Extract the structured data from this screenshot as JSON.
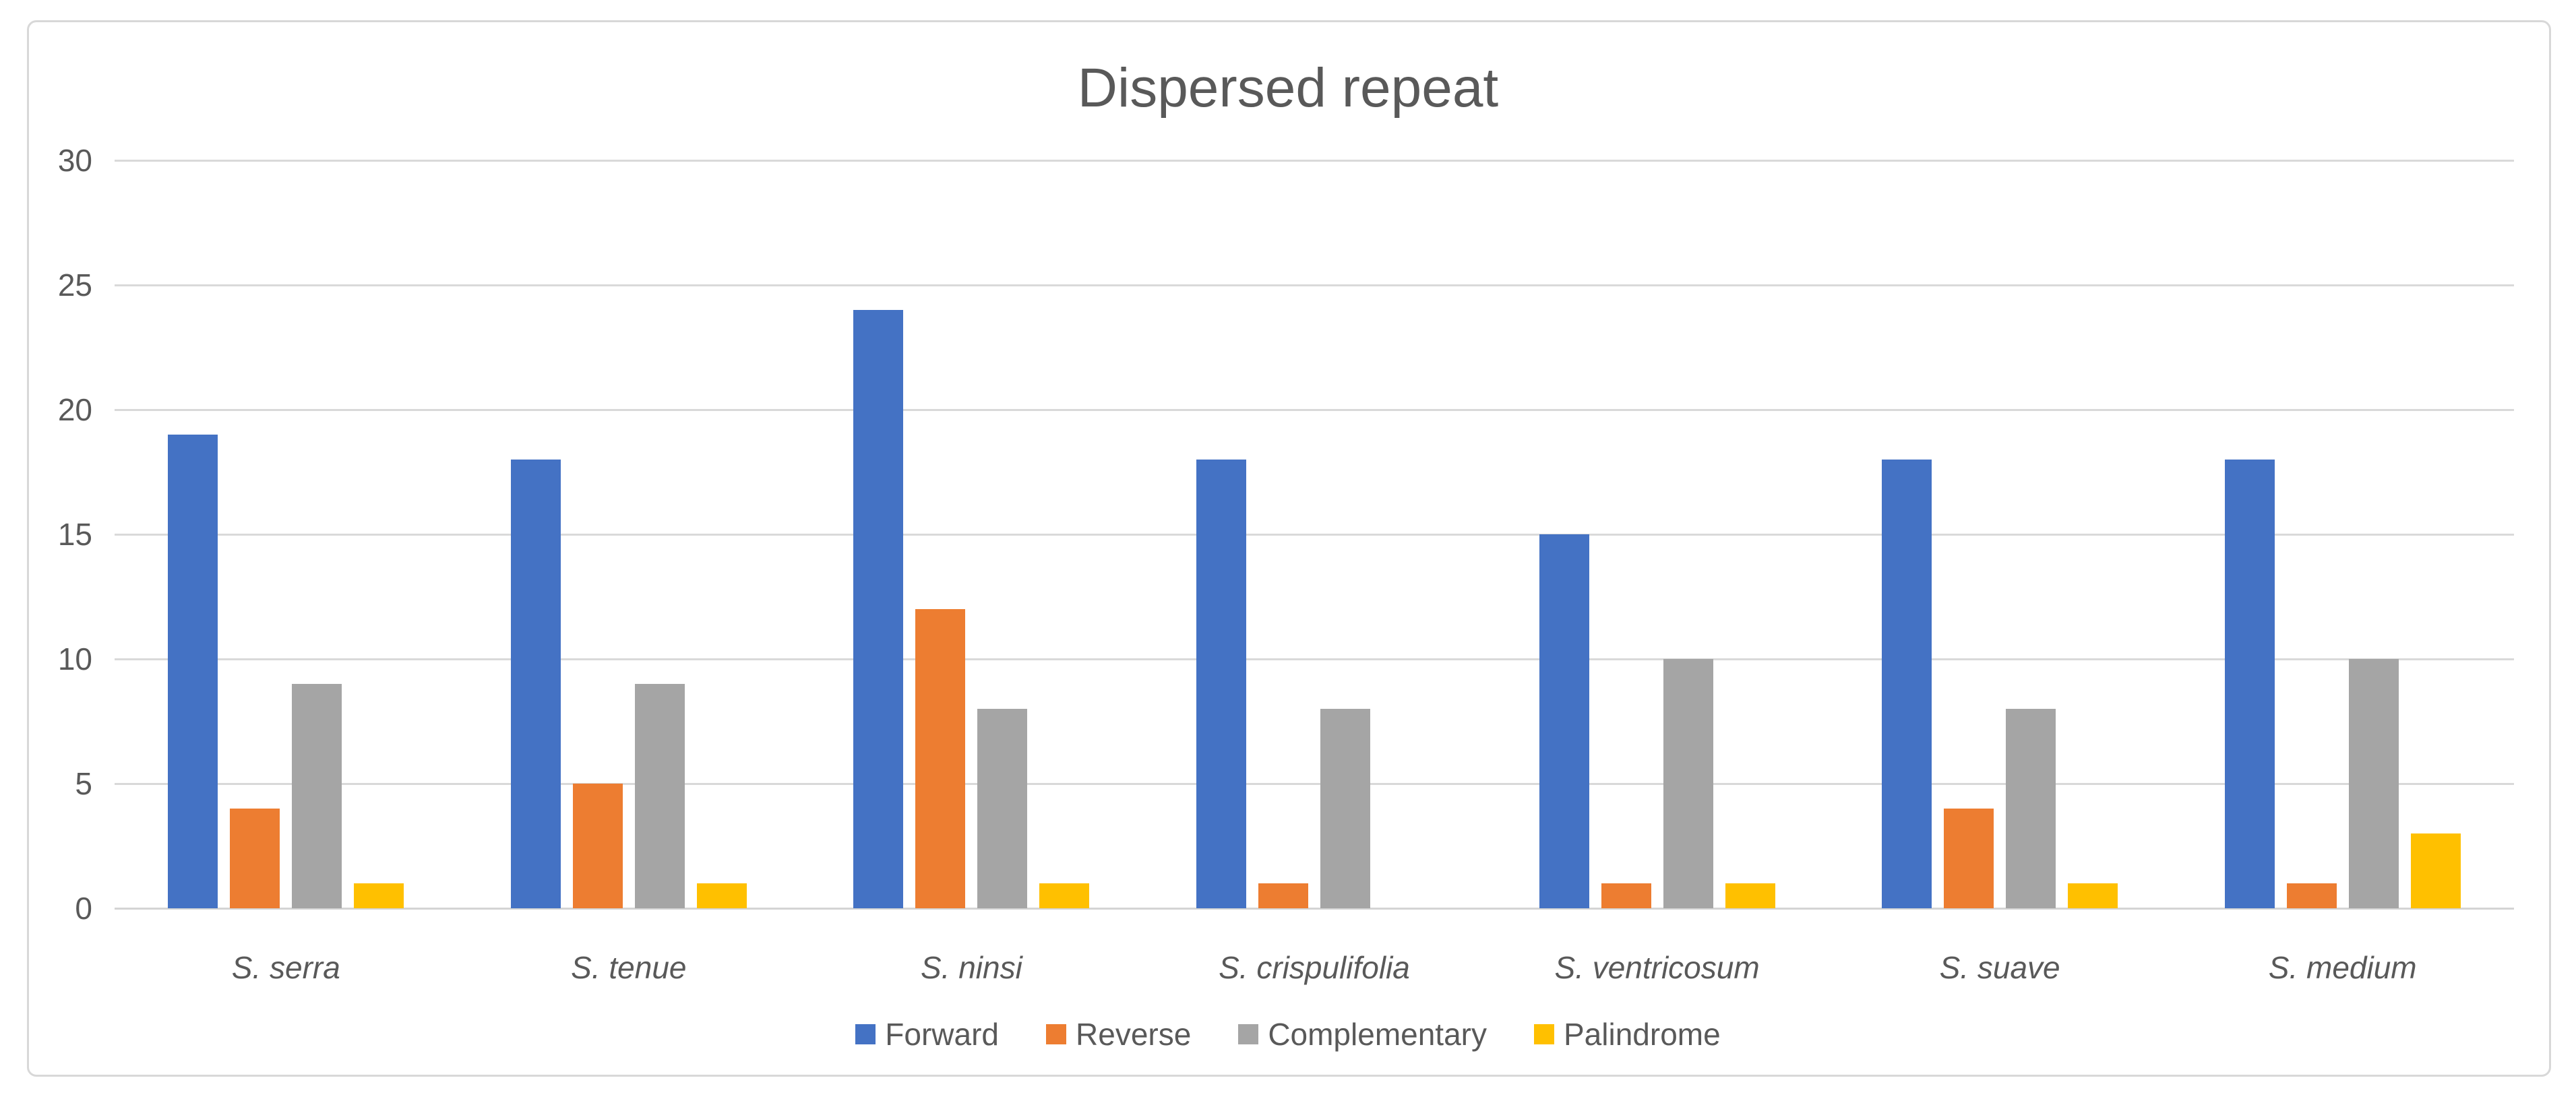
{
  "chart_data": {
    "type": "bar",
    "title": "Dispersed repeat",
    "categories": [
      "S. serra",
      "S. tenue",
      "S. ninsi",
      "S. crispulifolia",
      "S. ventricosum",
      "S. suave",
      "S. medium"
    ],
    "categories_style": "italic",
    "series": [
      {
        "name": "Forward",
        "color": "#4472C4",
        "values": [
          19,
          18,
          24,
          18,
          15,
          18,
          18
        ]
      },
      {
        "name": "Reverse",
        "color": "#ED7D31",
        "values": [
          4,
          5,
          12,
          1,
          1,
          4,
          1
        ]
      },
      {
        "name": "Complementary",
        "color": "#A5A5A5",
        "values": [
          9,
          9,
          8,
          8,
          10,
          8,
          10
        ]
      },
      {
        "name": "Palindrome",
        "color": "#FFC000",
        "values": [
          1,
          1,
          1,
          0,
          1,
          1,
          3
        ]
      }
    ],
    "y_axis": {
      "min": 0,
      "max": 30,
      "step": 5,
      "tick_labels": [
        "0",
        "5",
        "10",
        "15",
        "20",
        "25",
        "30"
      ]
    },
    "xlabel": "",
    "ylabel": "",
    "ylim": [
      0,
      30
    ],
    "grid": true,
    "legend": {
      "position": "bottom",
      "entries": [
        "Forward",
        "Reverse",
        "Complementary",
        "Palindrome"
      ]
    },
    "styles": {
      "text_color": "#595959",
      "gridline_color": "#D9D9D9",
      "frame_border_color": "#D8D8D8",
      "background": "#FFFFFF"
    }
  }
}
